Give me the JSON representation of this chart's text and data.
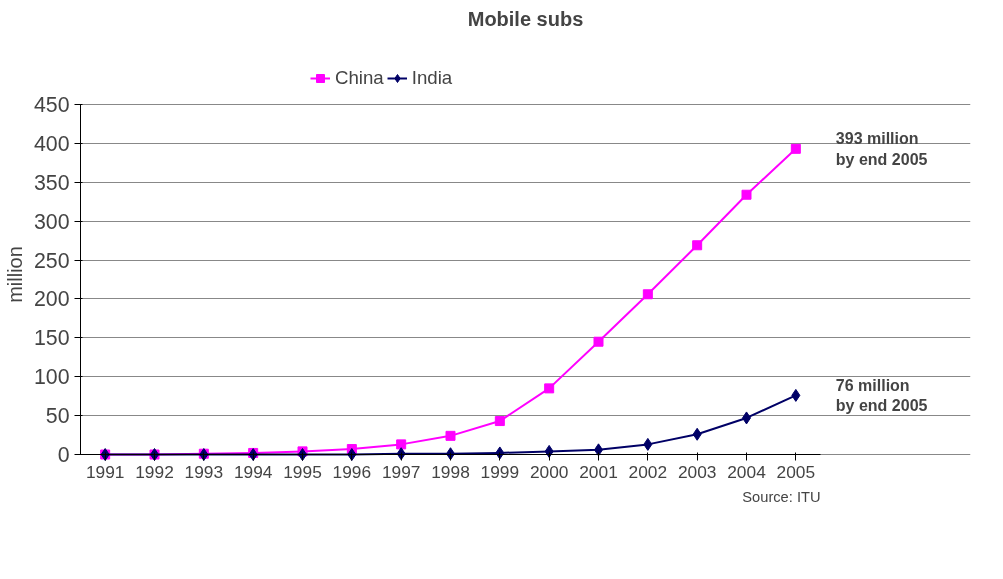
{
  "chart_data": {
    "type": "line",
    "title": "Mobile subs",
    "ylabel": "million",
    "categories": [
      "1991",
      "1992",
      "1993",
      "1994",
      "1995",
      "1996",
      "1997",
      "1998",
      "1999",
      "2000",
      "2001",
      "2002",
      "2003",
      "2004",
      "2005"
    ],
    "series": [
      {
        "name": "China",
        "color": "#ff00ff",
        "marker": "square",
        "values": [
          0,
          0,
          1,
          2,
          4,
          7,
          13,
          24,
          43,
          85,
          145,
          206,
          269,
          334,
          393
        ]
      },
      {
        "name": "India",
        "color": "#000066",
        "marker": "diamond",
        "values": [
          0,
          0,
          0,
          0,
          0,
          0,
          1,
          1,
          2,
          4,
          6,
          13,
          26,
          47,
          76
        ]
      }
    ],
    "ylim": [
      0,
      450
    ],
    "yticks": [
      0,
      50,
      100,
      150,
      200,
      250,
      300,
      350,
      400,
      450
    ],
    "grid": "y",
    "legend": "top",
    "annotations": [
      {
        "text": "393 million\nby end 2005",
        "x": "2005",
        "y": 393
      },
      {
        "text": "76 million\nby end 2005",
        "x": "2005",
        "y": 76
      },
      "Source: ITU"
    ]
  }
}
